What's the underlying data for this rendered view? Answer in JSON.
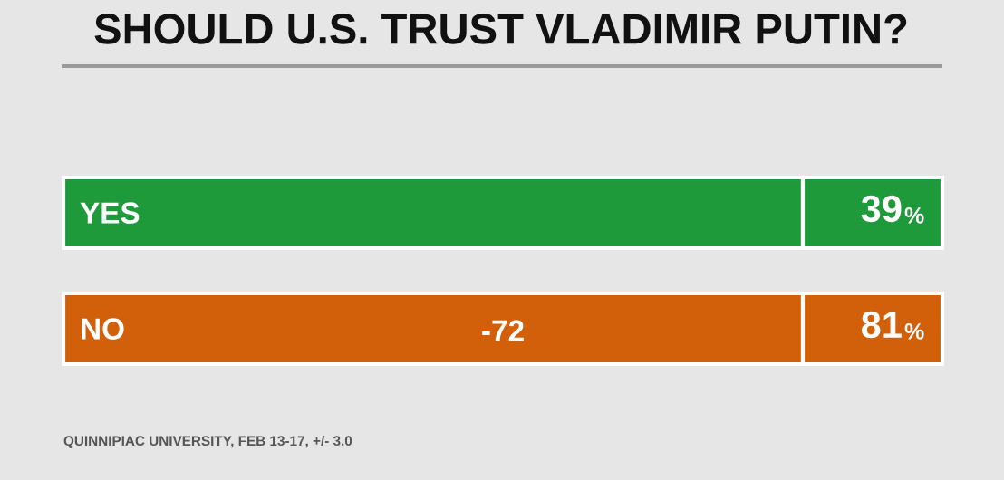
{
  "chart_data": {
    "type": "other",
    "title": "SHOULD U.S. TRUST VLADIMIR PUTIN?",
    "categories": [
      "YES",
      "NO"
    ],
    "values": [
      39,
      81
    ],
    "value_labels": [
      "39%",
      "81%"
    ],
    "colors": [
      "#1f9a3b",
      "#d2600a"
    ],
    "annotations": [
      {
        "text": "-72",
        "x": "NO"
      },
      "QUINNIPIAC UNIVERSITY, FEB 13-17, +/- 3.0"
    ]
  }
}
